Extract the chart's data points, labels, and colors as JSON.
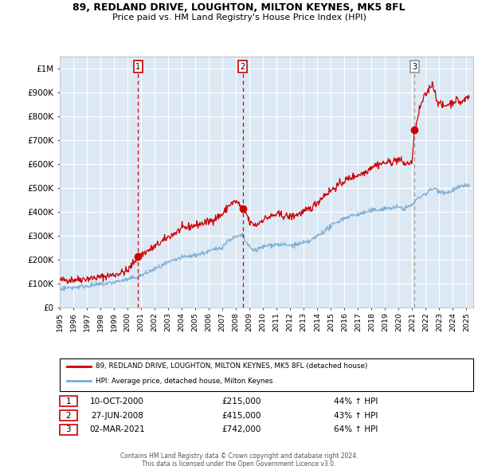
{
  "title": "89, REDLAND DRIVE, LOUGHTON, MILTON KEYNES, MK5 8FL",
  "subtitle": "Price paid vs. HM Land Registry's House Price Index (HPI)",
  "bg_color": "#dce9f5",
  "red_line_color": "#cc0000",
  "blue_line_color": "#7bafd4",
  "grid_color": "#ffffff",
  "vline_color_red": "#cc0000",
  "vline_color_gray": "#999999",
  "sale_dates": [
    2000.78,
    2008.49,
    2021.17
  ],
  "sale_prices": [
    215000,
    415000,
    742000
  ],
  "sale_labels": [
    "1",
    "2",
    "3"
  ],
  "ylim": [
    0,
    1050000
  ],
  "xlim": [
    1995.0,
    2025.5
  ],
  "yticks": [
    0,
    100000,
    200000,
    300000,
    400000,
    500000,
    600000,
    700000,
    800000,
    900000,
    1000000
  ],
  "ytick_labels": [
    "£0",
    "£100K",
    "£200K",
    "£300K",
    "£400K",
    "£500K",
    "£600K",
    "£700K",
    "£800K",
    "£900K",
    "£1M"
  ],
  "legend_red_label": "89, REDLAND DRIVE, LOUGHTON, MILTON KEYNES, MK5 8FL (detached house)",
  "legend_blue_label": "HPI: Average price, detached house, Milton Keynes",
  "table_rows": [
    [
      "1",
      "10-OCT-2000",
      "£215,000",
      "44% ↑ HPI"
    ],
    [
      "2",
      "27-JUN-2008",
      "£415,000",
      "43% ↑ HPI"
    ],
    [
      "3",
      "02-MAR-2021",
      "£742,000",
      "64% ↑ HPI"
    ]
  ],
  "footer": "Contains HM Land Registry data © Crown copyright and database right 2024.\nThis data is licensed under the Open Government Licence v3.0."
}
